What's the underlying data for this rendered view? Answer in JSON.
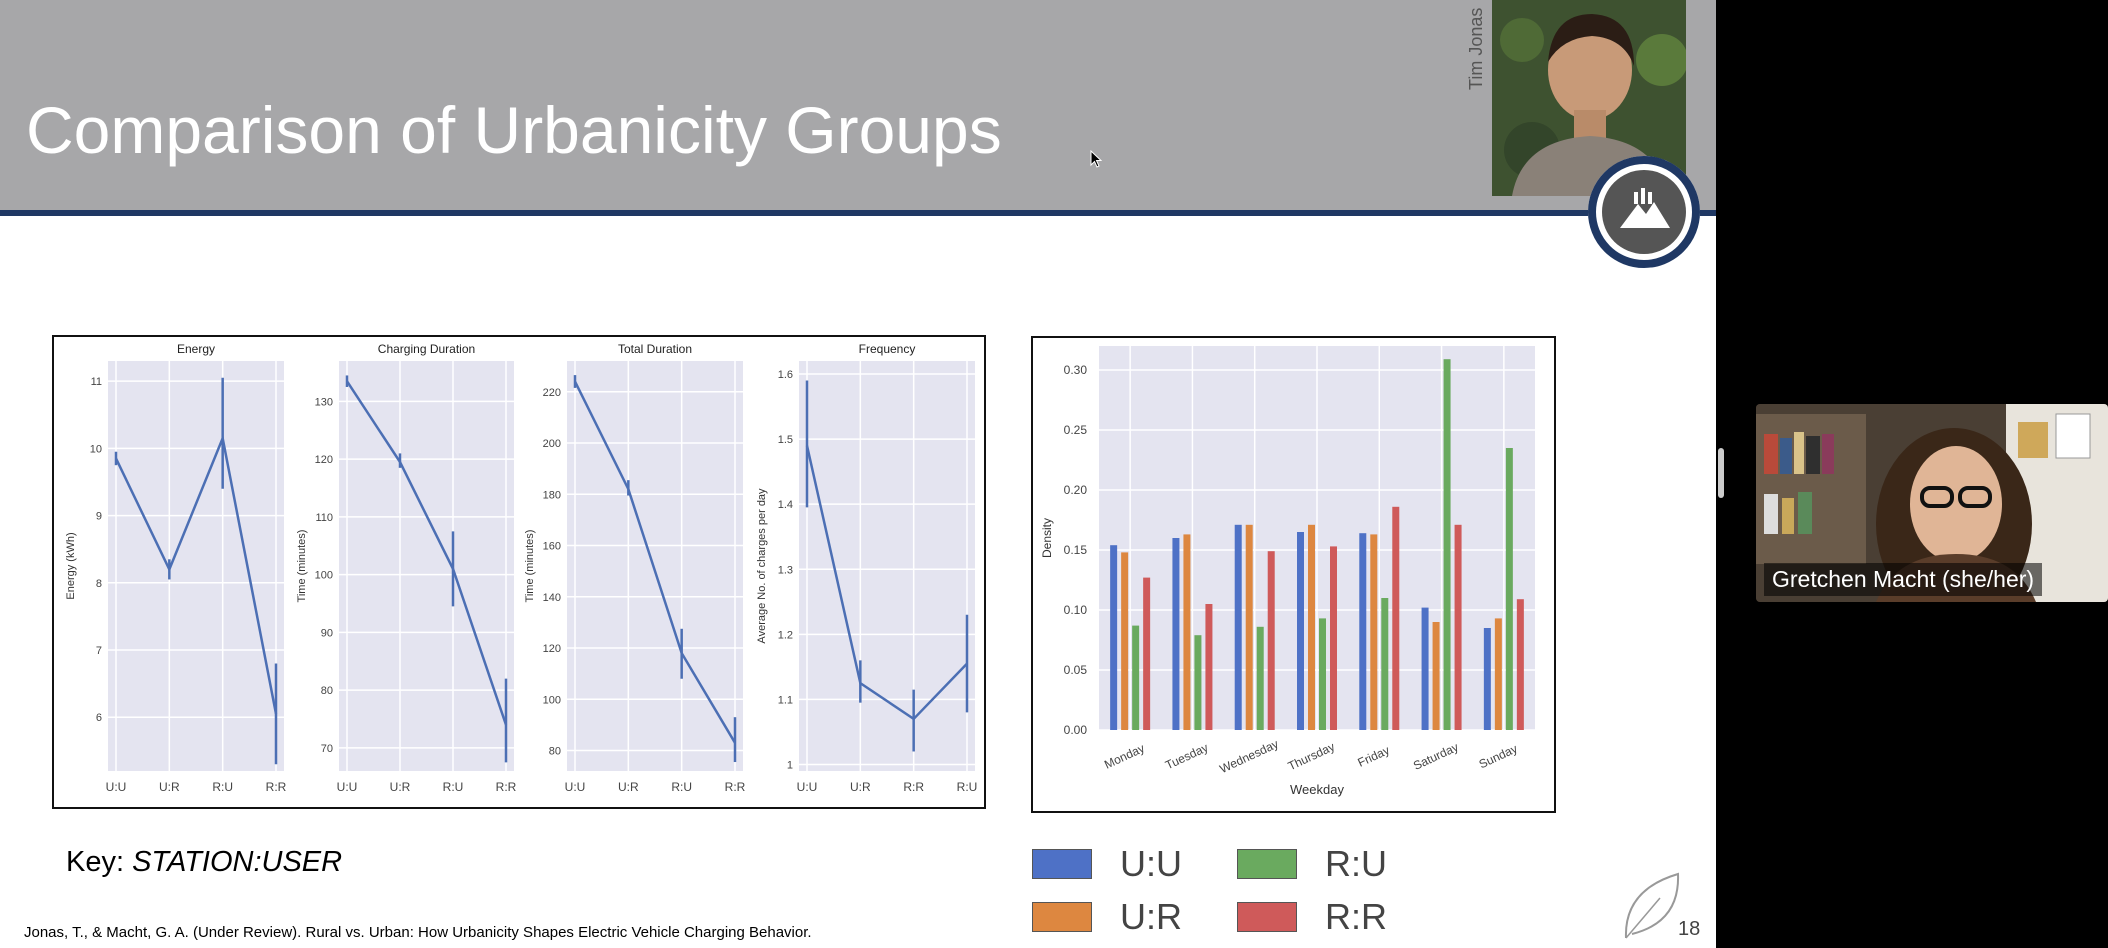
{
  "slide": {
    "title": "Comparison of Urbanicity Groups",
    "presenter_name_vertical": "Tim Jonas",
    "key_prefix": "Key: ",
    "key_value": "STATION:USER",
    "citation": "Jonas, T., & Macht, G. A. (Under Review). Rural vs. Urban: How Urbanicity Shapes Electric Vehicle Charging Behavior.",
    "page_number": "18",
    "legend": [
      {
        "label": "U:U",
        "color": "#4e71c6"
      },
      {
        "label": "R:U",
        "color": "#6aaa5f"
      },
      {
        "label": "U:R",
        "color": "#dd8740"
      },
      {
        "label": "R:R",
        "color": "#cf5a5a"
      }
    ]
  },
  "video": {
    "participant_name": "Gretchen Macht (she/her)"
  },
  "colors": {
    "header_bg": "#a7a7a9",
    "header_rule": "#1f3864",
    "plot_bg": "#e4e4f0",
    "line": "#4c6fb4"
  },
  "chart_data": [
    {
      "type": "line",
      "title": "Energy",
      "ylabel": "Energy (kWh)",
      "categories": [
        "U:U",
        "U:R",
        "R:U",
        "R:R"
      ],
      "values": [
        9.85,
        8.2,
        10.15,
        6.05
      ],
      "error_low": [
        9.75,
        8.05,
        9.4,
        5.3
      ],
      "error_high": [
        9.95,
        8.35,
        11.05,
        6.8
      ],
      "ylim": [
        5.2,
        11.3
      ],
      "yticks": [
        6,
        7,
        8,
        9,
        10,
        11
      ],
      "grid": true
    },
    {
      "type": "line",
      "title": "Charging Duration",
      "ylabel": "Time (minutes)",
      "categories": [
        "U:U",
        "U:R",
        "R:U",
        "R:R"
      ],
      "values": [
        133.5,
        119.5,
        101,
        74
      ],
      "error_low": [
        132.5,
        118.5,
        94.5,
        67.5
      ],
      "error_high": [
        134.5,
        121,
        107.5,
        82
      ],
      "ylim": [
        66,
        137
      ],
      "yticks": [
        70,
        80,
        90,
        100,
        110,
        120,
        130
      ],
      "grid": true
    },
    {
      "type": "line",
      "title": "Total Duration",
      "ylabel": "Time (minutes)",
      "categories": [
        "U:U",
        "U:R",
        "R:U",
        "R:R"
      ],
      "values": [
        224,
        182,
        118,
        83
      ],
      "error_low": [
        221.5,
        179.5,
        108,
        75.5
      ],
      "error_high": [
        226.5,
        185.5,
        127.5,
        93
      ],
      "ylim": [
        72,
        232
      ],
      "yticks": [
        80,
        100,
        120,
        140,
        160,
        180,
        200,
        220
      ],
      "grid": true
    },
    {
      "type": "line",
      "title": "Frequency",
      "ylabel": "Average No. of charges per day",
      "categories": [
        "U:U",
        "U:R",
        "R:R",
        "R:U"
      ],
      "values": [
        1.49,
        1.125,
        1.07,
        1.155
      ],
      "error_low": [
        1.395,
        1.095,
        1.02,
        1.08
      ],
      "error_high": [
        1.59,
        1.16,
        1.115,
        1.23
      ],
      "ylim": [
        0.99,
        1.62
      ],
      "yticks": [
        1.0,
        1.1,
        1.2,
        1.3,
        1.4,
        1.5,
        1.6
      ],
      "grid": true
    },
    {
      "type": "bar",
      "xlabel": "Weekday",
      "ylabel": "Density",
      "categories": [
        "Monday",
        "Tuesday",
        "Wednesday",
        "Thursday",
        "Friday",
        "Saturday",
        "Sunday"
      ],
      "series": [
        {
          "name": "U:U",
          "color": "#4e71c6",
          "values": [
            0.154,
            0.16,
            0.171,
            0.165,
            0.164,
            0.102,
            0.085
          ]
        },
        {
          "name": "U:R",
          "color": "#dd8740",
          "values": [
            0.148,
            0.163,
            0.171,
            0.171,
            0.163,
            0.09,
            0.093
          ]
        },
        {
          "name": "R:U",
          "color": "#6aaa5f",
          "values": [
            0.087,
            0.079,
            0.086,
            0.093,
            0.11,
            0.309,
            0.235
          ]
        },
        {
          "name": "R:R",
          "color": "#cf5a5a",
          "values": [
            0.127,
            0.105,
            0.149,
            0.153,
            0.186,
            0.171,
            0.109
          ]
        }
      ],
      "ylim": [
        0,
        0.32
      ],
      "yticks": [
        "0.00",
        "0.05",
        "0.10",
        "0.15",
        "0.20",
        "0.25",
        "0.30"
      ],
      "grid": true
    }
  ]
}
